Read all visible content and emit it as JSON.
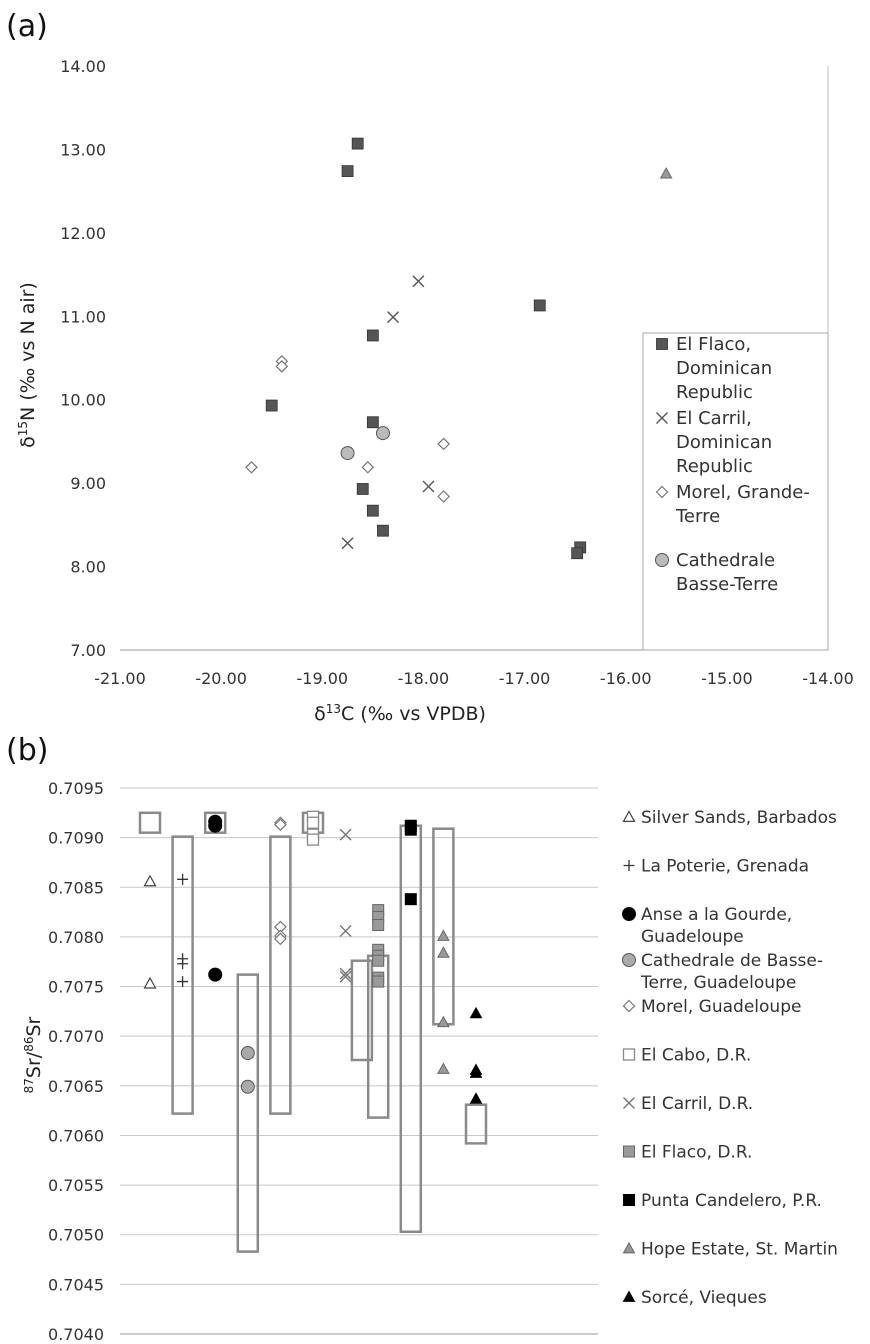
{
  "chart_data": [
    {
      "panel": "(a)",
      "type": "scatter",
      "xlabel_prefix": "δ",
      "xlabel_sup": "13",
      "xlabel_rest": "C (‰ vs VPDB)",
      "ylabel_prefix": "δ",
      "ylabel_sup": "15",
      "ylabel_rest": "N (‰ vs N air)",
      "xlim": [
        -21.0,
        -14.0
      ],
      "ylim": [
        7.0,
        14.0
      ],
      "xticks": [
        "-21.00",
        "-20.00",
        "-19.00",
        "-18.00",
        "-17.00",
        "-16.00",
        "-15.00",
        "-14.00"
      ],
      "yticks": [
        "7.00",
        "8.00",
        "9.00",
        "10.00",
        "11.00",
        "12.00",
        "13.00",
        "14.00"
      ],
      "grid": false,
      "legend_position": "right",
      "series": [
        {
          "name_lines": [
            "El Flaco,",
            "Dominican",
            "Republic"
          ],
          "marker": "square",
          "color": "#555555",
          "points": [
            [
              -18.65,
              13.07
            ],
            [
              -18.75,
              12.74
            ],
            [
              -16.85,
              11.13
            ],
            [
              -18.5,
              10.77
            ],
            [
              -19.5,
              9.93
            ],
            [
              -18.5,
              9.73
            ],
            [
              -18.6,
              8.93
            ],
            [
              -18.5,
              8.67
            ],
            [
              -18.4,
              8.43
            ],
            [
              -16.45,
              8.23
            ],
            [
              -16.48,
              8.16
            ]
          ]
        },
        {
          "name_lines": [
            "El Carril,",
            "Dominican",
            "Republic"
          ],
          "marker": "x",
          "color": "#555555",
          "points": [
            [
              -18.05,
              11.42
            ],
            [
              -18.3,
              10.99
            ],
            [
              -17.95,
              8.96
            ],
            [
              -18.75,
              8.28
            ]
          ]
        },
        {
          "name_lines": [
            "Morel, Grande-",
            "Terre"
          ],
          "marker": "diamond",
          "color": "#777777",
          "points": [
            [
              -19.4,
              10.46
            ],
            [
              -19.4,
              10.4
            ],
            [
              -17.8,
              9.47
            ],
            [
              -19.7,
              9.19
            ],
            [
              -18.55,
              9.19
            ],
            [
              -17.8,
              8.84
            ]
          ]
        },
        {
          "name_lines": [
            "Cathedrale",
            "Basse-Terre"
          ],
          "marker": "circle",
          "color": "#bbbbbb",
          "points": [
            [
              -18.4,
              9.6
            ],
            [
              -18.75,
              9.36
            ]
          ]
        },
        {
          "name_lines": [],
          "marker": "triangle",
          "color": "#999999",
          "points": [
            [
              -15.6,
              12.71
            ]
          ]
        }
      ]
    },
    {
      "panel": "(b)",
      "type": "scatter",
      "ylabel_sup1": "87",
      "ylabel_mid": "Sr/",
      "ylabel_sup2": "86",
      "ylabel_end": "Sr",
      "ylim": [
        0.704,
        0.7095
      ],
      "yticks": [
        "0.7040",
        "0.7045",
        "0.7050",
        "0.7055",
        "0.7060",
        "0.7065",
        "0.7070",
        "0.7075",
        "0.7080",
        "0.7085",
        "0.7090",
        "0.7095"
      ],
      "grid": true,
      "legend_position": "right",
      "columns": 11,
      "series": [
        {
          "name_lines": [
            "Silver Sands, Barbados"
          ],
          "marker": "triangle-open",
          "color": "#444444",
          "column": 0,
          "box": [
            0.70905,
            0.70925
          ],
          "points": [
            0.70856,
            0.70753
          ]
        },
        {
          "name_lines": [
            "La Poterie, Grenada"
          ],
          "marker": "plus",
          "color": "#333333",
          "column": 1,
          "box": [
            0.70622,
            0.70901
          ],
          "points": [
            0.70858,
            0.70778,
            0.70773,
            0.70755
          ]
        },
        {
          "name_lines": [
            "Anse a la Gourde,",
            "Guadeloupe"
          ],
          "marker": "circle-black",
          "color": "#000000",
          "column": 2,
          "box": [
            0.70905,
            0.70925
          ],
          "points": [
            0.70916,
            0.70912,
            0.70762
          ]
        },
        {
          "name_lines": [
            "Cathedrale de Basse-",
            "Terre, Guadeloupe"
          ],
          "marker": "circle-gray",
          "color": "#aaaaaa",
          "column": 3,
          "box": [
            0.70483,
            0.70762
          ],
          "points": [
            0.70683,
            0.70649
          ]
        },
        {
          "name_lines": [
            "Morel, Guadeloupe"
          ],
          "marker": "diamond",
          "color": "#777777",
          "column": 4,
          "box": [
            0.70622,
            0.70901
          ],
          "points": [
            0.70915,
            0.70913,
            0.7081,
            0.70801,
            0.70798
          ]
        },
        {
          "name_lines": [
            "El Cabo, D.R."
          ],
          "marker": "square-open",
          "color": "#888888",
          "column": 5,
          "box": [
            0.70905,
            0.70925
          ],
          "points": [
            0.70921,
            0.70915,
            0.70903,
            0.70898
          ]
        },
        {
          "name_lines": [
            "El Carril, D.R."
          ],
          "marker": "x",
          "color": "#777777",
          "column": 6,
          "box": null,
          "points": [
            0.70903,
            0.70806,
            0.70763,
            0.7076
          ]
        },
        {
          "name_lines": [
            "El Flaco, D.R."
          ],
          "marker": "square-gray",
          "color": "#9a9a9a",
          "column": 7,
          "box": [
            0.70618,
            0.70781
          ],
          "points": [
            0.70827,
            0.7082,
            0.70812,
            0.70787,
            0.70781,
            0.70776,
            0.70759,
            0.70755
          ]
        },
        {
          "name_lines": [
            "Punta Candelero, P.R."
          ],
          "marker": "square-black",
          "color": "#000000",
          "column": 8,
          "box": [
            0.70503,
            0.70912
          ],
          "points": [
            0.70912,
            0.70908,
            0.70838
          ]
        },
        {
          "name_lines": [
            "Hope Estate, St. Martin"
          ],
          "marker": "triangle-gray",
          "color": "#999999",
          "column": 9,
          "box": [
            0.70712,
            0.70909
          ],
          "points": [
            0.70801,
            0.70784,
            0.70714,
            0.70667
          ]
        },
        {
          "name_lines": [
            "Sorcé, Vieques"
          ],
          "marker": "triangle-black",
          "color": "#000000",
          "column": 10,
          "box": [
            0.70592,
            0.70631
          ],
          "points": [
            0.70723,
            0.70666,
            0.70663,
            0.70637
          ]
        },
        {
          "name_lines": [],
          "marker": "box",
          "color": "#888888",
          "column": 6.5,
          "box": [
            0.70676,
            0.70776
          ],
          "points": []
        }
      ]
    }
  ]
}
